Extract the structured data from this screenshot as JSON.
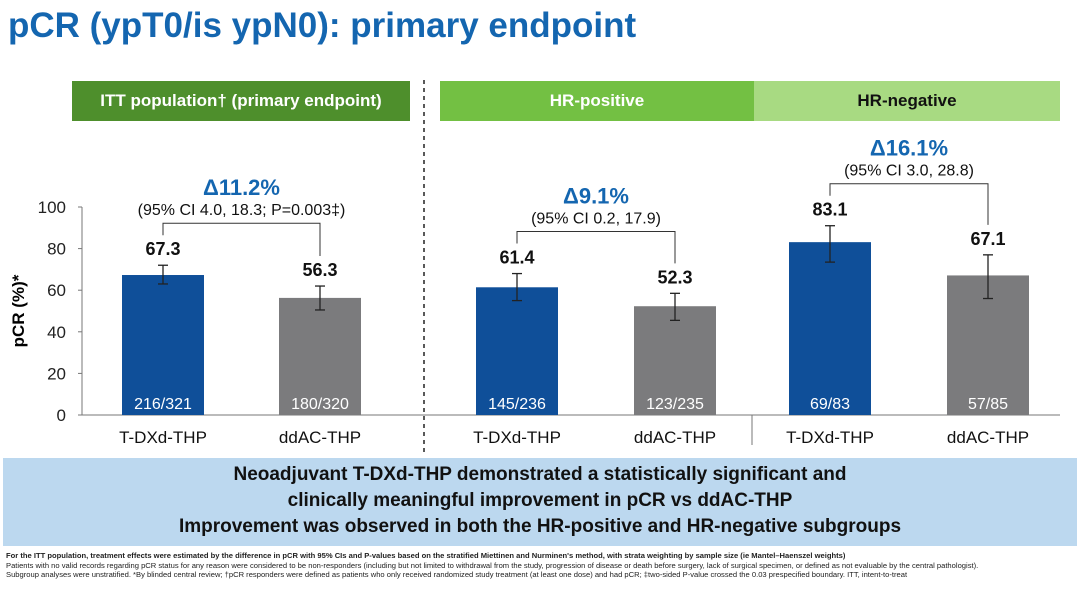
{
  "title": "pCR (ypT0/is ypN0): primary endpoint",
  "headers": {
    "itt": "ITT population† (primary endpoint)",
    "hrpos": "HR-positive",
    "hrneg": "HR-negative"
  },
  "conclusion": [
    "Neoadjuvant T-DXd-THP demonstrated a statistically significant and",
    "clinically meaningful improvement in pCR vs ddAC-THP",
    "Improvement was observed in both the HR-positive and HR-negative subgroups"
  ],
  "footnotes": [
    "For the ITT population, treatment effects were estimated by the difference in pCR with 95% CIs and P-values based on the stratified Miettinen and Nurminen's method, with strata weighting by sample size (ie Mantel–Haenszel weights)",
    "Patients with no valid records regarding pCR status for any reason were considered to be non-responders (including but not limited to withdrawal from the study, progression of disease or death before surgery, lack of surgical specimen, or defined as not evaluable by the central pathologist).",
    "Subgroup analyses were unstratified. *By blinded central review; †pCR responders were defined as patients who only received randomized study treatment (at least one dose) and had pCR; ‡two-sided P-value crossed the 0.03 prespecified boundary. ITT, intent-to-treat"
  ],
  "colors": {
    "title": "#1466b0",
    "tdxd": "#0f4f99",
    "ddac": "#7b7b7d",
    "itt_header": "#4e8f2c",
    "hrpos_header": "#73c043",
    "hrneg_header": "#a8da82",
    "conclusion_bg": "#bcd8ef"
  },
  "chart_data": {
    "type": "bar",
    "ylabel": "pCR (%)*",
    "ylim": [
      0,
      100
    ],
    "yticks": [
      0,
      20,
      40,
      60,
      80,
      100
    ],
    "bars": [
      {
        "group": "ITT",
        "category": "T-DXd-THP",
        "value": 67.3,
        "label": "67.3",
        "n": "216/321",
        "ci": [
          63,
          72
        ],
        "arm": "tdxd"
      },
      {
        "group": "ITT",
        "category": "ddAC-THP",
        "value": 56.3,
        "label": "56.3",
        "n": "180/320",
        "ci": [
          50.5,
          62
        ],
        "arm": "ddac"
      },
      {
        "group": "HR-positive",
        "category": "T-DXd-THP",
        "value": 61.4,
        "label": "61.4",
        "n": "145/236",
        "ci": [
          55,
          68
        ],
        "arm": "tdxd"
      },
      {
        "group": "HR-positive",
        "category": "ddAC-THP",
        "value": 52.3,
        "label": "52.3",
        "n": "123/235",
        "ci": [
          45.5,
          58.5
        ],
        "arm": "ddac"
      },
      {
        "group": "HR-negative",
        "category": "T-DXd-THP",
        "value": 83.1,
        "label": "83.1",
        "n": "69/83",
        "ci": [
          73.5,
          91
        ],
        "arm": "tdxd"
      },
      {
        "group": "HR-negative",
        "category": "ddAC-THP",
        "value": 67.1,
        "label": "67.1",
        "n": "57/85",
        "ci": [
          56,
          77
        ],
        "arm": "ddac"
      }
    ],
    "comparisons": [
      {
        "delta": "Δ11.2%",
        "ci": "(95% CI 4.0, 18.3; P=0.003‡)"
      },
      {
        "delta": "Δ9.1%",
        "ci": "(95% CI 0.2, 17.9)"
      },
      {
        "delta": "Δ16.1%",
        "ci": "(95% CI 3.0, 28.8)"
      }
    ]
  }
}
